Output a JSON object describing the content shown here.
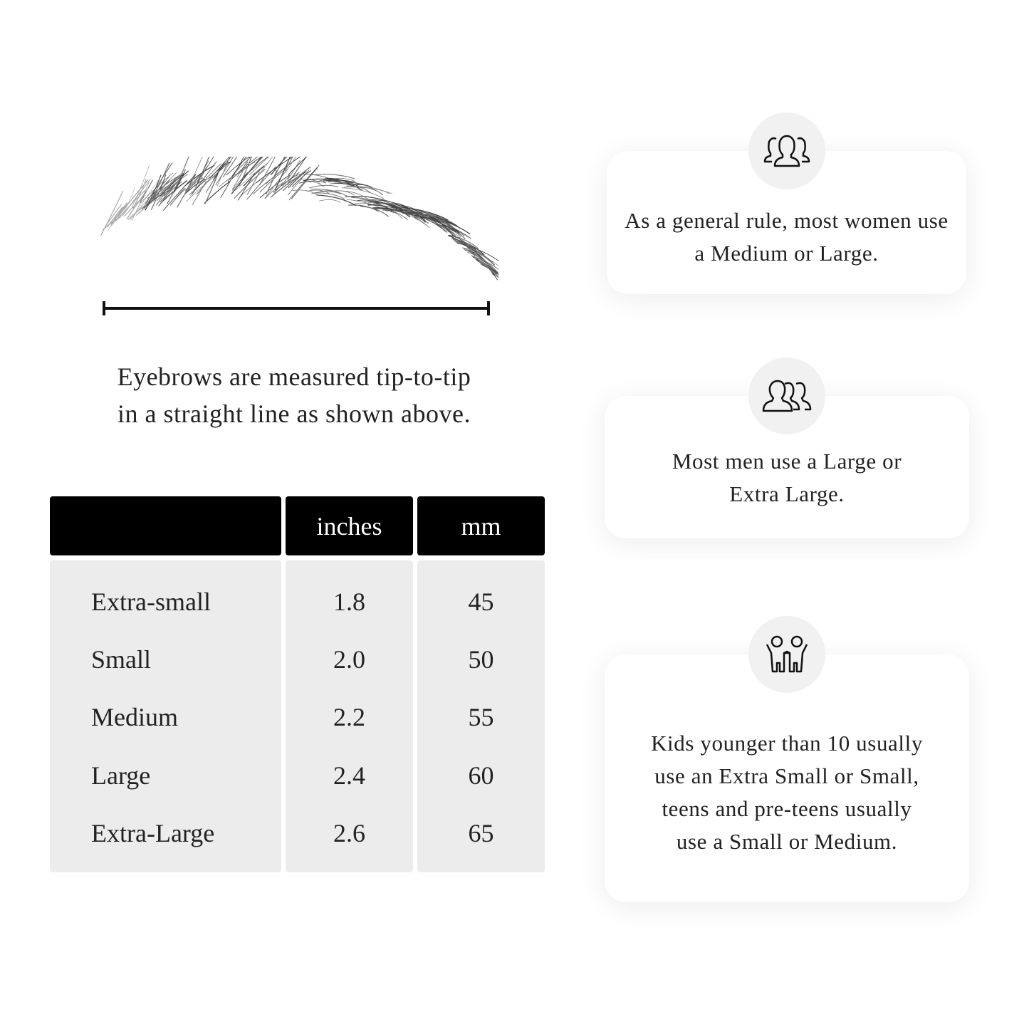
{
  "measurement": {
    "caption_line1": "Eyebrows are measured tip-to-tip",
    "caption_line2": "in a straight line as shown above."
  },
  "size_table": {
    "headers": [
      "",
      "inches",
      "mm"
    ],
    "rows": [
      {
        "size": "Extra-small",
        "inches": "1.8",
        "mm": "45"
      },
      {
        "size": "Small",
        "inches": "2.0",
        "mm": "50"
      },
      {
        "size": "Medium",
        "inches": "2.2",
        "mm": "55"
      },
      {
        "size": "Large",
        "inches": "2.4",
        "mm": "60"
      },
      {
        "size": "Extra-Large",
        "inches": "2.6",
        "mm": "65"
      }
    ]
  },
  "cards": [
    {
      "icon": "women-group-icon",
      "text": "As a general rule, most women use a Medium or Large."
    },
    {
      "icon": "men-group-icon",
      "text": "Most men use a Large or Extra Large."
    },
    {
      "icon": "kids-icon",
      "text": "Kids younger than 10 usually use an Extra Small or Small, teens and pre-teens usually use a Small or Medium."
    }
  ],
  "colors": {
    "header_bg": "#000000",
    "body_bg": "#ececec",
    "icon_circle": "#f1f1f1"
  }
}
